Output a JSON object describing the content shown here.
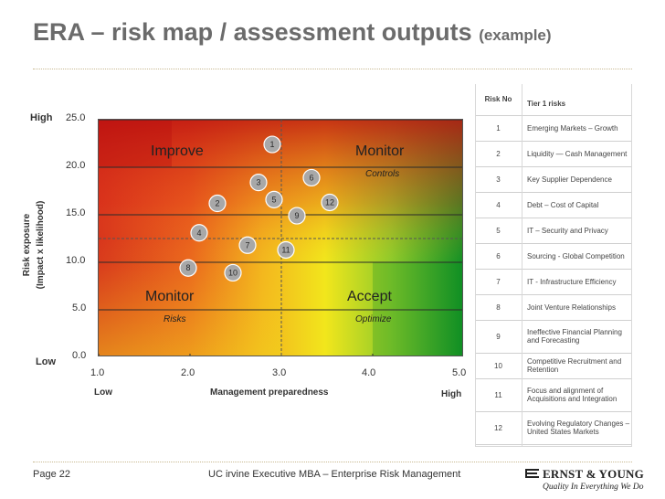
{
  "title": {
    "main": "ERA – risk map / assessment outputs",
    "suffix": "(example)"
  },
  "footer": {
    "page": "Page 22",
    "course": "UC irvine Executive MBA – Enterprise Risk Management"
  },
  "logo": {
    "brand": "ERNST & YOUNG",
    "tagline": "Quality In Everything We Do"
  },
  "chart_data": {
    "type": "scatter",
    "xlabel": "Management preparedness",
    "ylabel": [
      "Risk exposure",
      "(Impact x likelihood)"
    ],
    "xlim": [
      1.0,
      5.0
    ],
    "ylim": [
      0.0,
      25.0
    ],
    "x_ticks": [
      "1.0",
      "2.0",
      "3.0",
      "4.0",
      "5.0"
    ],
    "y_ticks": [
      "0.0",
      "5.0",
      "10.0",
      "15.0",
      "20.0",
      "25.0"
    ],
    "x_end_labels": {
      "low": "Low",
      "high": "High"
    },
    "y_end_labels": {
      "low": "Low",
      "high": "High"
    },
    "grid": true,
    "reference_lines": {
      "x": 3.0,
      "y": 12.5
    },
    "quadrants": [
      {
        "label": "Improve",
        "sublabel": ""
      },
      {
        "label": "Monitor",
        "sublabel": "Controls"
      },
      {
        "label": "Monitor",
        "sublabel": "Risks"
      },
      {
        "label": "Accept",
        "sublabel": "Optimize"
      }
    ],
    "points": [
      {
        "label": "1",
        "x": 2.9,
        "y": 22.4
      },
      {
        "label": "2",
        "x": 2.3,
        "y": 16.2
      },
      {
        "label": "3",
        "x": 2.75,
        "y": 18.4
      },
      {
        "label": "4",
        "x": 2.1,
        "y": 13.1
      },
      {
        "label": "5",
        "x": 2.92,
        "y": 16.6
      },
      {
        "label": "6",
        "x": 3.33,
        "y": 18.9
      },
      {
        "label": "7",
        "x": 2.63,
        "y": 11.8
      },
      {
        "label": "8",
        "x": 1.98,
        "y": 9.4
      },
      {
        "label": "9",
        "x": 3.17,
        "y": 14.9
      },
      {
        "label": "10",
        "x": 2.47,
        "y": 8.9
      },
      {
        "label": "11",
        "x": 3.05,
        "y": 11.3
      },
      {
        "label": "12",
        "x": 3.53,
        "y": 16.3
      }
    ]
  },
  "risk_table": {
    "headers": [
      "Risk No",
      "Tier 1 risks"
    ],
    "rows": [
      {
        "no": "1",
        "name": "Emerging Markets – Growth"
      },
      {
        "no": "2",
        "name": "Liquidity — Cash Management"
      },
      {
        "no": "3",
        "name": "Key Supplier Dependence"
      },
      {
        "no": "4",
        "name": "Debt – Cost of Capital"
      },
      {
        "no": "5",
        "name": "IT – Security and Privacy"
      },
      {
        "no": "6",
        "name": "Sourcing - Global Competition"
      },
      {
        "no": "7",
        "name": "IT - Infrastructure Efficiency"
      },
      {
        "no": "8",
        "name": "Joint Venture Relationships"
      },
      {
        "no": "9",
        "name": "Ineffective Financial Planning and Forecasting"
      },
      {
        "no": "10",
        "name": "Competitive Recruitment and Retention"
      },
      {
        "no": "11",
        "name": "Focus and alignment of Acquisitions and Integration"
      },
      {
        "no": "12",
        "name": "Evolving Regulatory Changes – United States Markets"
      }
    ]
  },
  "colors": {
    "red": "#d7261e",
    "orange": "#f08c1c",
    "yellow": "#f4e81a",
    "green": "#1f9a2b",
    "title": "#6b6b6b"
  }
}
